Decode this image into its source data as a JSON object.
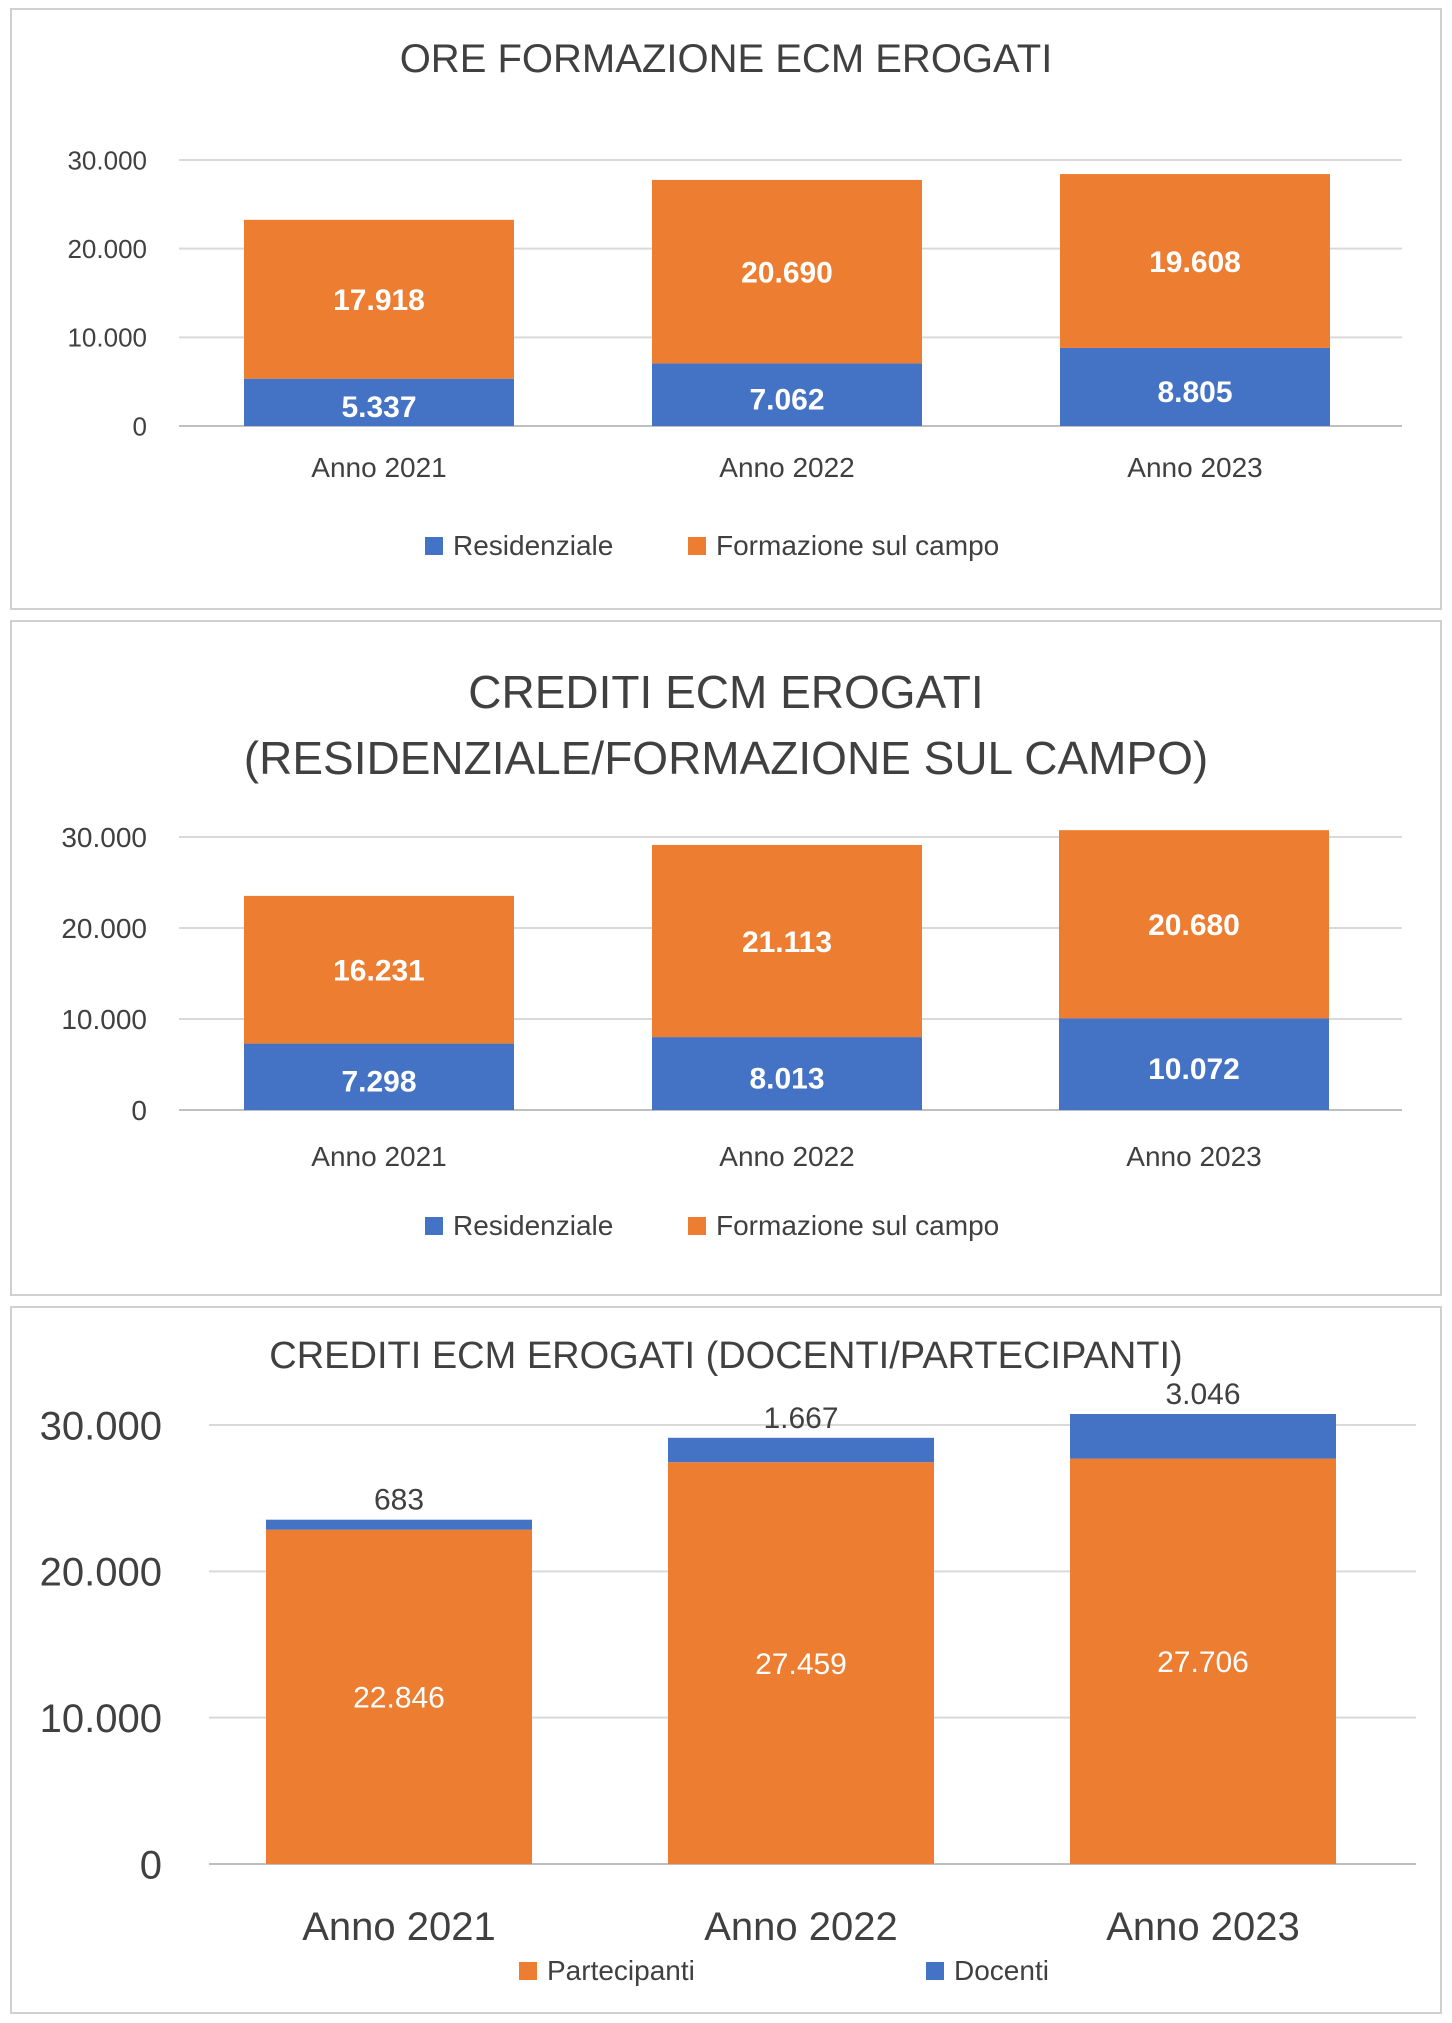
{
  "colors": {
    "blue": "#4472c4",
    "orange": "#ed7d31",
    "grid": "#d9d9d9",
    "text": "#404040"
  },
  "chart_data": [
    {
      "type": "bar",
      "stacked": true,
      "title": [
        "ORE FORMAZIONE ECM EROGATI"
      ],
      "categories": [
        "Anno 2021",
        "Anno 2022",
        "Anno 2023"
      ],
      "ylim": [
        0,
        30000
      ],
      "yticks": [
        "0",
        "10.000",
        "20.000",
        "30.000"
      ],
      "yticks_values": [
        0,
        10000,
        20000,
        30000
      ],
      "grid": true,
      "legend_position": "bottom",
      "series": [
        {
          "name": "Residenziale",
          "color": "#4472c4",
          "values": [
            5337,
            7062,
            8805
          ],
          "labels": [
            "5.337",
            "7.062",
            "8.805"
          ]
        },
        {
          "name": "Formazione sul campo",
          "color": "#ed7d31",
          "values": [
            17918,
            20690,
            19608
          ],
          "labels": [
            "17.918",
            "20.690",
            "19.608"
          ]
        }
      ]
    },
    {
      "type": "bar",
      "stacked": true,
      "title": [
        "CREDITI ECM EROGATI",
        "(RESIDENZIALE/FORMAZIONE SUL CAMPO)"
      ],
      "categories": [
        "Anno 2021",
        "Anno 2022",
        "Anno 2023"
      ],
      "ylim": [
        0,
        30000
      ],
      "yticks": [
        "0",
        "10.000",
        "20.000",
        "30.000"
      ],
      "yticks_values": [
        0,
        10000,
        20000,
        30000
      ],
      "grid": true,
      "legend_position": "bottom",
      "series": [
        {
          "name": "Residenziale",
          "color": "#4472c4",
          "values": [
            7298,
            8013,
            10072
          ],
          "labels": [
            "7.298",
            "8.013",
            "10.072"
          ]
        },
        {
          "name": "Formazione sul campo",
          "color": "#ed7d31",
          "values": [
            16231,
            21113,
            20680
          ],
          "labels": [
            "16.231",
            "21.113",
            "20.680"
          ]
        }
      ]
    },
    {
      "type": "bar",
      "stacked": true,
      "title": [
        "CREDITI ECM EROGATI (DOCENTI/PARTECIPANTI)"
      ],
      "categories": [
        "Anno 2021",
        "Anno 2022",
        "Anno 2023"
      ],
      "ylim": [
        0,
        30000
      ],
      "yticks": [
        "0",
        "10.000",
        "20.000",
        "30.000"
      ],
      "yticks_values": [
        0,
        10000,
        20000,
        30000
      ],
      "grid": true,
      "legend_position": "bottom",
      "series": [
        {
          "name": "Partecipanti",
          "color": "#ed7d31",
          "values": [
            22846,
            27459,
            27706
          ],
          "labels": [
            "22.846",
            "27.459",
            "27.706"
          ]
        },
        {
          "name": "Docenti",
          "color": "#4472c4",
          "values": [
            683,
            1667,
            3046
          ],
          "labels": [
            "683",
            "1.667",
            "3.046"
          ]
        }
      ]
    }
  ]
}
